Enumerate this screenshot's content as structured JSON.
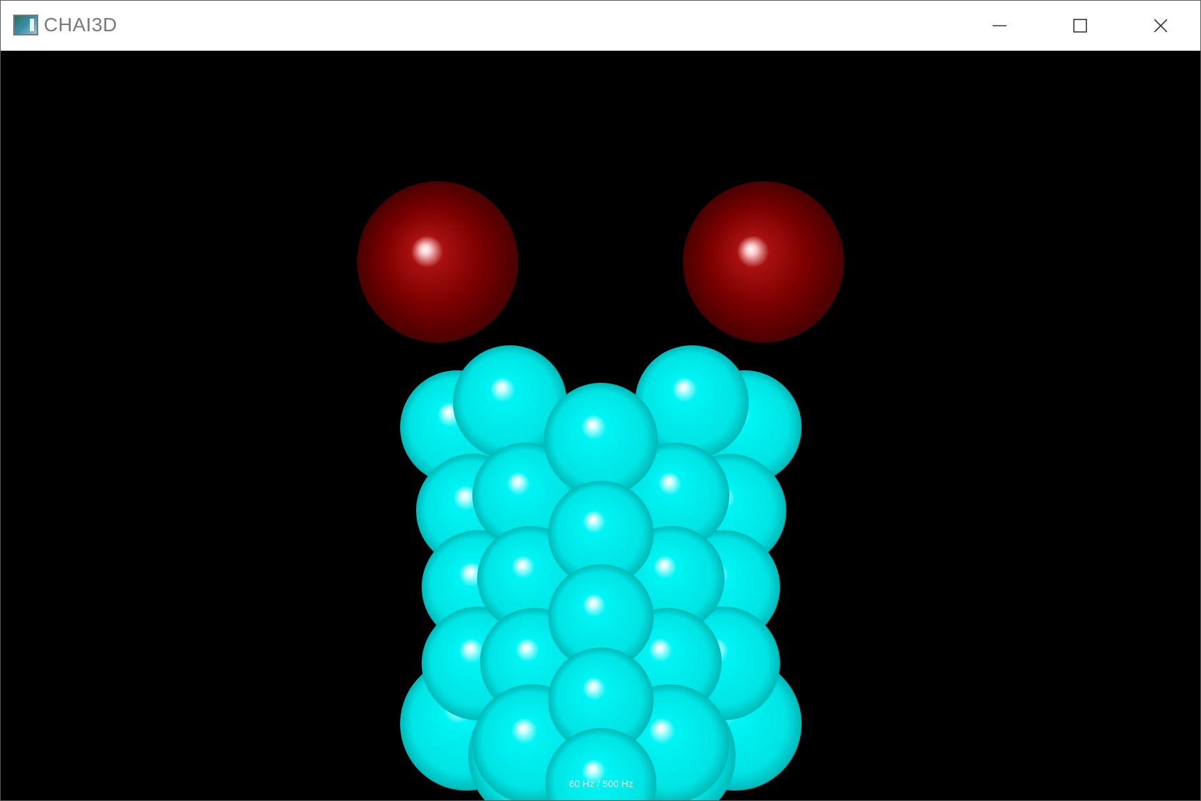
{
  "window": {
    "title": "CHAI3D",
    "icon": "chai3d-app-icon",
    "controls": {
      "minimize": "minimize-icon",
      "maximize": "maximize-icon",
      "close": "close-icon"
    }
  },
  "viewport": {
    "background": "#000000",
    "status_text": "60 Hz / 500 Hz",
    "colors": {
      "body_spheres": "#00e6e6",
      "end_spheres": "#7a0000"
    }
  }
}
